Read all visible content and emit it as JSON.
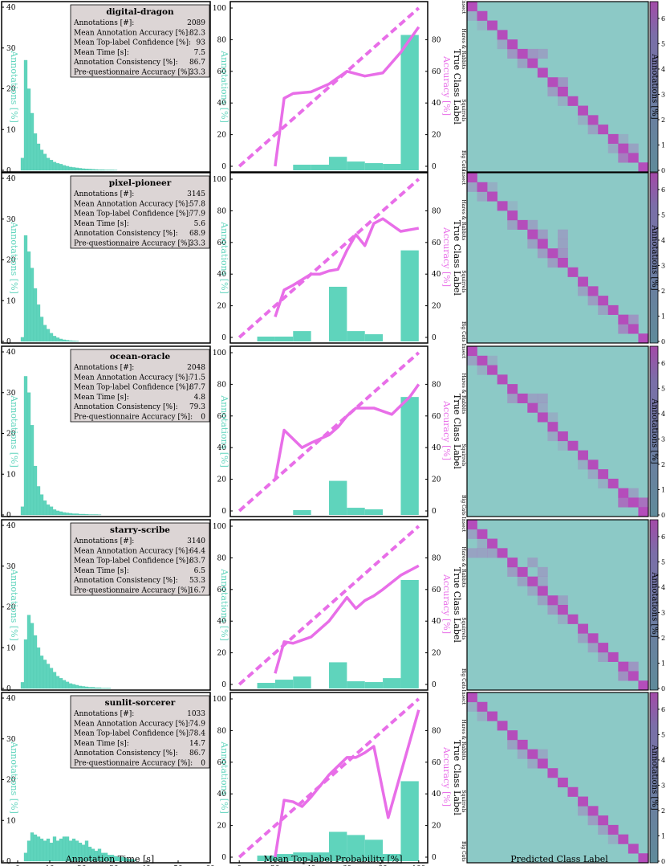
{
  "colors": {
    "teal": "#5fd4bc",
    "magenta": "#e86ee8",
    "matrix_base": "#8cc9c6",
    "matrix_diag": "#b44dbb",
    "stats_box_bg": "#dcd5d5"
  },
  "xlabels": {
    "time": "Annotation Time [s]",
    "prob": "Mean Top-label Probability [%]",
    "pred": "Predicted Class Label"
  },
  "ylabels": {
    "annotations": "Annotations [%]",
    "accuracy": "Accuracy [%]",
    "true_class": "True Class Label",
    "colorbar": "Annotations [%]"
  },
  "class_ticks": [
    "Insect",
    "Hares & Rabbits",
    "Squirrels",
    "Big Cats"
  ],
  "chart_data": [
    {
      "type": "panel-row",
      "name": "digital-dragon",
      "stats": [
        {
          "label": "Annotations [#]:",
          "value": "2089"
        },
        {
          "label": "Mean Annotation Accuracy [%]:",
          "value": "82.3"
        },
        {
          "label": "Mean Top-label Confidence [%]:",
          "value": "93"
        },
        {
          "label": "Mean Time [s]:",
          "value": "7.5"
        },
        {
          "label": "Annotation Consistency [%]:",
          "value": "86.7"
        },
        {
          "label": "Pre-questionnaire Accuracy [%]:",
          "value": "33.3"
        }
      ],
      "time_hist": {
        "type": "bar",
        "xlim": [
          -5,
          60
        ],
        "ylim": [
          0,
          40
        ],
        "bin_start": 1,
        "bin_width": 1,
        "values": [
          3,
          27,
          20,
          14,
          9,
          6.5,
          5,
          4,
          3,
          2.5,
          2,
          1.7,
          1.5,
          1.2,
          1,
          0.8,
          0.7,
          0.6,
          0.5,
          0.4,
          0.35,
          0.3,
          0.25,
          0.2,
          0.15,
          0.15,
          0.1,
          0.1,
          0.1,
          0.05
        ]
      },
      "calib": {
        "type": "bar+line",
        "xlim": [
          -5,
          105
        ],
        "ylim": [
          0,
          100
        ],
        "bins_x": [
          10,
          30,
          50,
          70,
          90
        ],
        "bins": [],
        "bar_centers": [
          10,
          20,
          30,
          40,
          50,
          60,
          70,
          80,
          90,
          100
        ],
        "bar_values": [
          0,
          0,
          0,
          1,
          1,
          6,
          3,
          2,
          1.5,
          83
        ],
        "acc_x": [
          20,
          25,
          30,
          40,
          50,
          60,
          70,
          80,
          90,
          100
        ],
        "acc_y": [
          0,
          43,
          46,
          47,
          52,
          60,
          57,
          59,
          72,
          88
        ]
      },
      "colorbar_ticks": [
        0,
        1,
        2,
        3,
        4,
        5,
        6
      ],
      "matrix_offdiag": [
        [
          1,
          0,
          0.2
        ],
        [
          2,
          1,
          0.15
        ],
        [
          4,
          3,
          0.25
        ],
        [
          5,
          4,
          0.4
        ],
        [
          5,
          6,
          0.4
        ],
        [
          6,
          5,
          0.3
        ],
        [
          5,
          7,
          0.3
        ],
        [
          8,
          9,
          0.4
        ],
        [
          9,
          8,
          0.35
        ],
        [
          10,
          9,
          0.2
        ],
        [
          12,
          11,
          0.2
        ],
        [
          13,
          12,
          0.3
        ],
        [
          14,
          15,
          0.2
        ],
        [
          15,
          14,
          0.25
        ],
        [
          16,
          15,
          0.6
        ],
        [
          15,
          16,
          0.3
        ]
      ]
    },
    {
      "type": "panel-row",
      "name": "pixel-pioneer",
      "stats": [
        {
          "label": "Annotations [#]:",
          "value": "3145"
        },
        {
          "label": "Mean Annotation Accuracy [%]:",
          "value": "57.8"
        },
        {
          "label": "Mean Top-label Confidence [%]:",
          "value": "77.9"
        },
        {
          "label": "Mean Time [s]:",
          "value": "5.6"
        },
        {
          "label": "Annotation Consistency [%]:",
          "value": "68.9"
        },
        {
          "label": "Pre-questionnaire Accuracy [%]:",
          "value": "33.3"
        }
      ],
      "time_hist": {
        "type": "bar",
        "xlim": [
          -5,
          60
        ],
        "ylim": [
          0,
          40
        ],
        "bin_start": 1,
        "bin_width": 1,
        "values": [
          1,
          26,
          22,
          18,
          13,
          9,
          6,
          4,
          3,
          2,
          1.3,
          0.9,
          0.6,
          0.4,
          0.3,
          0.2,
          0.15,
          0.1
        ]
      },
      "calib": {
        "type": "bar+line",
        "xlim": [
          -5,
          105
        ],
        "ylim": [
          0,
          100
        ],
        "bar_centers": [
          10,
          20,
          30,
          40,
          50,
          60,
          70,
          80,
          90,
          100
        ],
        "bar_values": [
          0,
          0.5,
          0.5,
          4,
          0,
          32,
          4,
          2,
          0,
          55
        ],
        "acc_x": [
          20,
          25,
          30,
          40,
          45,
          50,
          55,
          60,
          65,
          70,
          75,
          80,
          90,
          100
        ],
        "acc_y": [
          13,
          30,
          33,
          40,
          40,
          42,
          43,
          55,
          65,
          58,
          72,
          75,
          67,
          69
        ]
      },
      "colorbar_ticks": [
        0,
        1,
        2,
        3,
        4,
        5,
        6
      ],
      "matrix_offdiag": [
        [
          1,
          0,
          0.3
        ],
        [
          2,
          1,
          0.25
        ],
        [
          1,
          2,
          0.2
        ],
        [
          3,
          4,
          0.15
        ],
        [
          5,
          4,
          0.3
        ],
        [
          5,
          6,
          0.3
        ],
        [
          6,
          7,
          0.35
        ],
        [
          7,
          6,
          0.3
        ],
        [
          8,
          7,
          0.35
        ],
        [
          8,
          9,
          0.4
        ],
        [
          9,
          8,
          0.35
        ],
        [
          7,
          9,
          0.3
        ],
        [
          6,
          9,
          0.3
        ],
        [
          12,
          11,
          0.3
        ],
        [
          13,
          12,
          0.35
        ],
        [
          14,
          13,
          0.3
        ],
        [
          16,
          15,
          0.5
        ],
        [
          15,
          16,
          0.4
        ]
      ]
    },
    {
      "type": "panel-row",
      "name": "ocean-oracle",
      "stats": [
        {
          "label": "Annotations [#]:",
          "value": "2048"
        },
        {
          "label": "Mean Annotation Accuracy [%]:",
          "value": "71.5"
        },
        {
          "label": "Mean Top-label Confidence [%]:",
          "value": "87.7"
        },
        {
          "label": "Mean Time [s]:",
          "value": "4.8"
        },
        {
          "label": "Annotation Consistency [%]:",
          "value": "79.3"
        },
        {
          "label": "Pre-questionnaire Accuracy [%]:",
          "value": "0"
        }
      ],
      "time_hist": {
        "type": "bar",
        "xlim": [
          -5,
          60
        ],
        "ylim": [
          0,
          40
        ],
        "bin_start": 1,
        "bin_width": 1,
        "values": [
          2,
          34,
          30,
          22,
          12,
          7,
          5,
          3.5,
          2.5,
          2,
          1.3,
          1,
          0.8,
          0.6,
          0.5,
          0.4,
          0.3,
          0.3,
          0.2,
          0.2,
          0.15,
          0.1,
          0.1,
          0.1,
          0.05
        ]
      },
      "calib": {
        "type": "bar+line",
        "xlim": [
          -5,
          105
        ],
        "ylim": [
          0,
          100
        ],
        "bar_centers": [
          10,
          20,
          30,
          40,
          50,
          60,
          70,
          80,
          90,
          100
        ],
        "bar_values": [
          0,
          0,
          0,
          0.5,
          0,
          19,
          2,
          1,
          0,
          72
        ],
        "acc_x": [
          20,
          25,
          35,
          40,
          50,
          55,
          60,
          65,
          75,
          85,
          95,
          100
        ],
        "acc_y": [
          20,
          51,
          40,
          43,
          48,
          53,
          60,
          65,
          65,
          61,
          72,
          80
        ]
      },
      "colorbar_ticks": [
        0,
        1,
        2,
        3,
        4,
        5,
        6
      ],
      "matrix_offdiag": [
        [
          1,
          0,
          0.3
        ],
        [
          2,
          1,
          0.2
        ],
        [
          1,
          2,
          0.2
        ],
        [
          5,
          4,
          0.35
        ],
        [
          5,
          6,
          0.3
        ],
        [
          6,
          7,
          0.25
        ],
        [
          5,
          7,
          0.3
        ],
        [
          7,
          8,
          0.2
        ],
        [
          9,
          8,
          0.25
        ],
        [
          10,
          9,
          0.15
        ],
        [
          12,
          11,
          0.2
        ],
        [
          13,
          12,
          0.25
        ],
        [
          14,
          13,
          0.2
        ],
        [
          16,
          15,
          0.7
        ],
        [
          16,
          17,
          0.7
        ],
        [
          15,
          16,
          0.3
        ]
      ]
    },
    {
      "type": "panel-row",
      "name": "starry-scribe",
      "stats": [
        {
          "label": "Annotations [#]:",
          "value": "3140"
        },
        {
          "label": "Mean Annotation Accuracy [%]:",
          "value": "64.4"
        },
        {
          "label": "Mean Top-label Confidence [%]:",
          "value": "83.7"
        },
        {
          "label": "Mean Time [s]:",
          "value": "6.5"
        },
        {
          "label": "Annotation Consistency [%]:",
          "value": "53.3"
        },
        {
          "label": "Pre-questionnaire Accuracy [%]:",
          "value": "16.7"
        }
      ],
      "time_hist": {
        "type": "bar",
        "xlim": [
          -5,
          60
        ],
        "ylim": [
          0,
          40
        ],
        "bin_start": 1,
        "bin_width": 1,
        "values": [
          1.5,
          12,
          18,
          16,
          13,
          10,
          8,
          7,
          6,
          5,
          4,
          3,
          2.5,
          2,
          1.6,
          1.2,
          1,
          0.8,
          0.6,
          0.5,
          0.4,
          0.3,
          0.3,
          0.2,
          0.2,
          0.1,
          0.1,
          0.1
        ]
      },
      "calib": {
        "type": "bar+line",
        "xlim": [
          -5,
          105
        ],
        "ylim": [
          0,
          100
        ],
        "bar_centers": [
          10,
          20,
          30,
          40,
          50,
          60,
          70,
          80,
          90,
          100
        ],
        "bar_values": [
          0,
          1,
          3,
          5,
          0,
          14,
          2,
          1.5,
          4,
          66
        ],
        "acc_x": [
          20,
          25,
          30,
          40,
          50,
          60,
          65,
          70,
          75,
          80,
          90,
          100
        ],
        "acc_y": [
          7,
          27,
          26,
          30,
          40,
          55,
          48,
          53,
          56,
          60,
          69,
          75
        ]
      },
      "colorbar_ticks": [
        0,
        1,
        2,
        3,
        4,
        5,
        6
      ],
      "matrix_offdiag": [
        [
          1,
          0,
          0.3
        ],
        [
          2,
          1,
          0.2
        ],
        [
          3,
          0,
          0.3
        ],
        [
          3,
          1,
          0.3
        ],
        [
          3,
          2,
          0.3
        ],
        [
          5,
          4,
          0.35
        ],
        [
          6,
          5,
          0.3
        ],
        [
          6,
          7,
          0.25
        ],
        [
          4,
          6,
          0.3
        ],
        [
          5,
          7,
          0.3
        ],
        [
          7,
          6,
          0.25
        ],
        [
          8,
          7,
          0.3
        ],
        [
          9,
          8,
          0.35
        ],
        [
          8,
          9,
          0.3
        ],
        [
          10,
          9,
          0.2
        ],
        [
          12,
          11,
          0.3
        ],
        [
          13,
          12,
          0.3
        ],
        [
          14,
          13,
          0.3
        ],
        [
          16,
          15,
          0.45
        ],
        [
          15,
          16,
          0.4
        ]
      ]
    },
    {
      "type": "panel-row",
      "name": "sunlit-sorcerer",
      "stats": [
        {
          "label": "Annotations [#]:",
          "value": "1033"
        },
        {
          "label": "Mean Annotation Accuracy [%]:",
          "value": "74.9"
        },
        {
          "label": "Mean Top-label Confidence [%]:",
          "value": "78.4"
        },
        {
          "label": "Mean Time [s]:",
          "value": "14.7"
        },
        {
          "label": "Annotation Consistency [%]:",
          "value": "86.7"
        },
        {
          "label": "Pre-questionnaire Accuracy [%]:",
          "value": "0"
        }
      ],
      "time_hist": {
        "type": "bar",
        "xlim": [
          -5,
          60
        ],
        "ylim": [
          0,
          40
        ],
        "bin_start": 2,
        "bin_width": 1,
        "values": [
          2,
          5,
          7,
          6.5,
          6,
          5.5,
          5,
          5.5,
          4.5,
          6,
          5,
          5.5,
          6,
          6,
          5,
          5.5,
          5,
          4.5,
          4,
          5,
          3.5,
          3,
          2.5,
          3,
          2,
          2,
          1.5,
          1.5,
          1.2,
          1,
          1,
          0.8,
          0.5,
          0.5,
          0.3
        ]
      },
      "calib": {
        "type": "bar+line",
        "xlim": [
          -5,
          105
        ],
        "ylim": [
          0,
          100
        ],
        "bar_centers": [
          10,
          20,
          30,
          40,
          50,
          60,
          70,
          80,
          90,
          100
        ],
        "bar_values": [
          0,
          1,
          2,
          3,
          3,
          16,
          14,
          11,
          2,
          48
        ],
        "acc_x": [
          20,
          25,
          30,
          35,
          40,
          50,
          60,
          65,
          70,
          75,
          83,
          100
        ],
        "acc_y": [
          0,
          36,
          35,
          32,
          38,
          52,
          63,
          63,
          66,
          70,
          25,
          93
        ]
      },
      "colorbar_ticks": [
        0,
        1,
        2,
        3,
        4,
        5,
        6
      ],
      "matrix_offdiag": [
        [
          1,
          0,
          0.2
        ],
        [
          2,
          1,
          0.2
        ],
        [
          5,
          4,
          0.3
        ],
        [
          6,
          5,
          0.25
        ],
        [
          6,
          7,
          0.25
        ],
        [
          7,
          6,
          0.25
        ],
        [
          12,
          11,
          0.3
        ],
        [
          13,
          12,
          0.35
        ],
        [
          14,
          13,
          0.3
        ],
        [
          15,
          14,
          0.2
        ]
      ]
    }
  ]
}
